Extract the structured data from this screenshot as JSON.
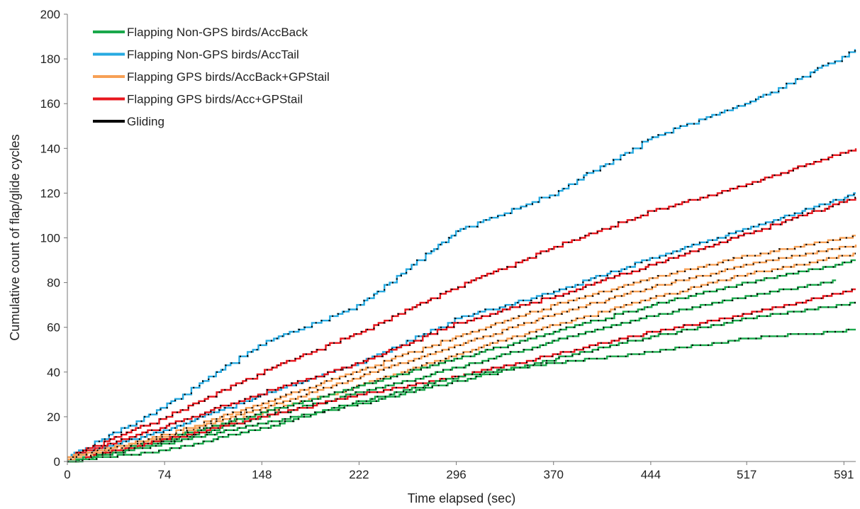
{
  "chart_data": {
    "type": "line",
    "xlabel": "Time elapsed (sec)",
    "ylabel": "Cumulative count of flap/glide cycles",
    "xlim": [
      0,
      600
    ],
    "ylim": [
      0,
      200
    ],
    "x_ticks": [
      0,
      74,
      148,
      222,
      296,
      370,
      444,
      517,
      591
    ],
    "y_ticks": [
      0,
      20,
      40,
      60,
      80,
      100,
      120,
      140,
      160,
      180,
      200
    ],
    "grid": false,
    "legend_position": "top-left",
    "legend": [
      {
        "label": "Flapping Non-GPS birds/AccBack",
        "color": "#1aa84b"
      },
      {
        "label": "Flapping Non-GPS birds/AccTail",
        "color": "#27aae1"
      },
      {
        "label": "Flapping GPS birds/AccBack+GPStail",
        "color": "#f7a055"
      },
      {
        "label": "Flapping GPS birds/Acc+GPStail",
        "color": "#e8161d"
      },
      {
        "label": "Gliding",
        "color": "#000000"
      }
    ],
    "series": [
      {
        "color": "#27aae1",
        "x": [
          0,
          74,
          148,
          222,
          296,
          370,
          444,
          517,
          600
        ],
        "values": [
          2,
          25,
          53,
          70,
          103,
          120,
          145,
          160,
          184
        ]
      },
      {
        "color": "#e8161d",
        "x": [
          0,
          74,
          148,
          222,
          296,
          370,
          444,
          517,
          600
        ],
        "values": [
          2,
          20,
          40,
          58,
          78,
          96,
          112,
          124,
          140
        ]
      },
      {
        "color": "#27aae1",
        "x": [
          0,
          74,
          148,
          222,
          296,
          370,
          444,
          517,
          600
        ],
        "values": [
          2,
          14,
          30,
          44,
          64,
          76,
          91,
          104,
          120
        ]
      },
      {
        "color": "#e8161d",
        "x": [
          0,
          74,
          148,
          222,
          296,
          370,
          444,
          517,
          600
        ],
        "values": [
          2,
          16,
          31,
          44,
          62,
          74,
          88,
          102,
          118
        ]
      },
      {
        "color": "#f7a055",
        "x": [
          0,
          74,
          148,
          222,
          296,
          370,
          444,
          517,
          600
        ],
        "values": [
          2,
          12,
          26,
          41,
          56,
          70,
          82,
          92,
          101
        ]
      },
      {
        "color": "#f7a055",
        "x": [
          0,
          74,
          148,
          222,
          296,
          370,
          444,
          517,
          600
        ],
        "values": [
          2,
          11,
          24,
          38,
          52,
          66,
          78,
          88,
          97
        ]
      },
      {
        "color": "#f7a055",
        "x": [
          0,
          74,
          148,
          222,
          296,
          370,
          444,
          517,
          600
        ],
        "values": [
          1,
          10,
          22,
          34,
          48,
          61,
          73,
          84,
          93
        ]
      },
      {
        "color": "#1aa84b",
        "x": [
          0,
          74,
          148,
          222,
          296,
          370,
          444,
          517,
          600
        ],
        "values": [
          0,
          10,
          22,
          34,
          46,
          58,
          70,
          80,
          90
        ]
      },
      {
        "color": "#1aa84b",
        "x": [
          0,
          74,
          148,
          222,
          296,
          370,
          444,
          517,
          585
        ],
        "values": [
          0,
          9,
          20,
          31,
          42,
          54,
          65,
          74,
          81
        ]
      },
      {
        "color": "#e8161d",
        "x": [
          0,
          74,
          148,
          222,
          296,
          370,
          444,
          517,
          600
        ],
        "values": [
          0,
          10,
          20,
          30,
          38,
          48,
          58,
          66,
          77
        ]
      },
      {
        "color": "#1aa84b",
        "x": [
          0,
          74,
          148,
          222,
          296,
          370,
          444,
          517,
          600
        ],
        "values": [
          0,
          8,
          17,
          26,
          36,
          46,
          56,
          64,
          71
        ]
      },
      {
        "color": "#1aa84b",
        "x": [
          0,
          74,
          148,
          222,
          296,
          370,
          444,
          517,
          600
        ],
        "values": [
          0,
          5,
          15,
          27,
          38,
          44,
          49,
          55,
          59
        ]
      }
    ]
  }
}
